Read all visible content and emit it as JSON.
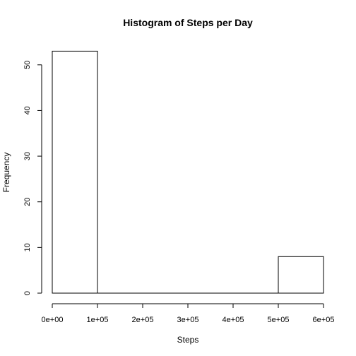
{
  "chart_data": {
    "type": "bar",
    "title": "Histogram of Steps per Day",
    "xlabel": "Steps",
    "ylabel": "Frequency",
    "bins": [
      {
        "start": 0,
        "end": 100000,
        "count": 53
      },
      {
        "start": 100000,
        "end": 200000,
        "count": 0
      },
      {
        "start": 200000,
        "end": 300000,
        "count": 0
      },
      {
        "start": 300000,
        "end": 400000,
        "count": 0
      },
      {
        "start": 400000,
        "end": 500000,
        "count": 0
      },
      {
        "start": 500000,
        "end": 600000,
        "count": 8
      }
    ],
    "xlim": [
      0,
      600000
    ],
    "ylim": [
      0,
      53
    ],
    "x_ticks": [
      0,
      100000,
      200000,
      300000,
      400000,
      500000,
      600000
    ],
    "x_tick_labels": [
      "0e+00",
      "1e+05",
      "2e+05",
      "3e+05",
      "4e+05",
      "5e+05",
      "6e+05"
    ],
    "y_ticks": [
      0,
      10,
      20,
      30,
      40,
      50
    ],
    "y_tick_labels": [
      "0",
      "10",
      "20",
      "30",
      "40",
      "50"
    ],
    "grid": false,
    "legend": "none"
  }
}
